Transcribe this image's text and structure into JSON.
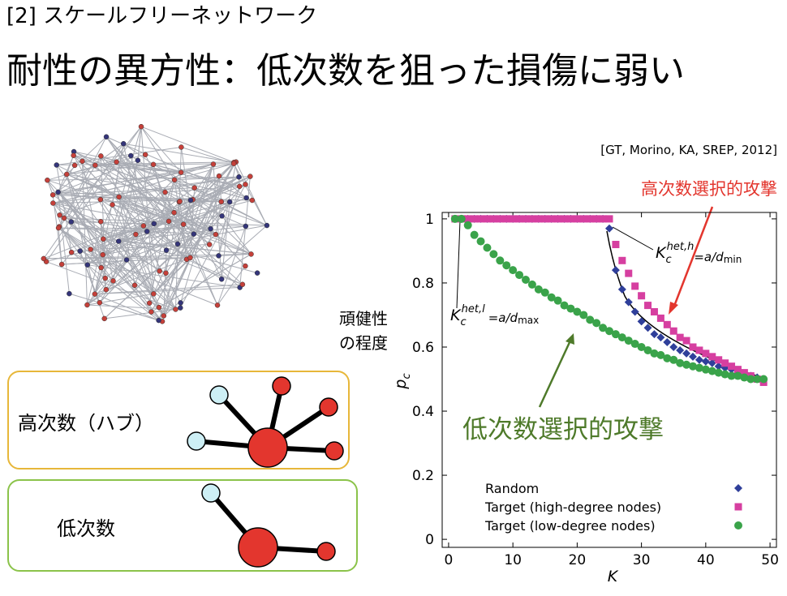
{
  "header": {
    "subtitle": "[2] スケールフリーネットワーク",
    "title": "耐性の異方性：低次数を狙った損傷に弱い"
  },
  "boxes": [
    {
      "label": "高次数（ハブ）"
    },
    {
      "label": "低次数"
    }
  ],
  "chart_data": {
    "type": "scatter",
    "citation": "[GT, Morino, KA, SREP, 2012]",
    "annotations": {
      "high_attack": "高次数選択的攻撃",
      "low_attack": "低次数選択的攻撃",
      "robustness": [
        "頑健性",
        "の程度"
      ]
    },
    "threshold_labels": [
      [
        "K",
        "c",
        "het,h",
        "=a/d",
        "min"
      ],
      [
        "K",
        "c",
        "het,l",
        "=a/d",
        "max"
      ]
    ],
    "x_label": "K",
    "y_label": [
      "p",
      "c"
    ],
    "x": [
      1,
      2,
      3,
      4,
      5,
      6,
      7,
      8,
      9,
      10,
      11,
      12,
      13,
      14,
      15,
      16,
      17,
      18,
      19,
      20,
      21,
      22,
      23,
      24,
      25,
      26,
      27,
      28,
      29,
      30,
      31,
      32,
      33,
      34,
      35,
      36,
      37,
      38,
      39,
      40,
      41,
      42,
      43,
      44,
      45,
      46,
      47,
      48,
      49
    ],
    "series": [
      {
        "name": "Random",
        "color": "#2f3f9a",
        "marker": "diamond",
        "values": [
          1,
          1,
          1,
          1,
          1,
          1,
          1,
          1,
          1,
          1,
          1,
          1,
          1,
          1,
          1,
          1,
          1,
          1,
          1,
          1,
          1,
          1,
          1,
          1,
          0.97,
          0.84,
          0.78,
          0.74,
          0.71,
          0.68,
          0.66,
          0.64,
          0.63,
          0.615,
          0.6,
          0.59,
          0.58,
          0.57,
          0.56,
          0.555,
          0.55,
          0.54,
          0.535,
          0.53,
          0.52,
          0.515,
          0.51,
          0.505,
          0.5
        ]
      },
      {
        "name": "Target (high-degree nodes)",
        "color": "#d63fa0",
        "marker": "square",
        "values": [
          1,
          1,
          1,
          1,
          1,
          1,
          1,
          1,
          1,
          1,
          1,
          1,
          1,
          1,
          1,
          1,
          1,
          1,
          1,
          1,
          1,
          1,
          1,
          1,
          1,
          0.92,
          0.87,
          0.83,
          0.79,
          0.76,
          0.73,
          0.71,
          0.69,
          0.67,
          0.65,
          0.63,
          0.62,
          0.6,
          0.59,
          0.58,
          0.57,
          0.56,
          0.55,
          0.54,
          0.53,
          0.52,
          0.51,
          0.5,
          0.49
        ]
      },
      {
        "name": "Target (low-degree nodes)",
        "color": "#3aa34a",
        "marker": "circle",
        "values": [
          1,
          1,
          0.98,
          0.95,
          0.93,
          0.91,
          0.89,
          0.87,
          0.855,
          0.84,
          0.825,
          0.81,
          0.795,
          0.78,
          0.77,
          0.755,
          0.745,
          0.73,
          0.72,
          0.71,
          0.7,
          0.685,
          0.675,
          0.66,
          0.65,
          0.64,
          0.63,
          0.62,
          0.61,
          0.6,
          0.59,
          0.58,
          0.575,
          0.565,
          0.56,
          0.55,
          0.545,
          0.54,
          0.535,
          0.53,
          0.525,
          0.52,
          0.515,
          0.51,
          0.51,
          0.505,
          0.5,
          0.5,
          0.5
        ]
      }
    ],
    "xlim": [
      -1,
      51
    ],
    "ylim": [
      -0.025,
      1.02
    ],
    "xticks": [
      0,
      10,
      20,
      30,
      40,
      50
    ],
    "yticks": [
      0,
      0.2,
      0.4,
      0.6,
      0.8,
      1
    ]
  }
}
